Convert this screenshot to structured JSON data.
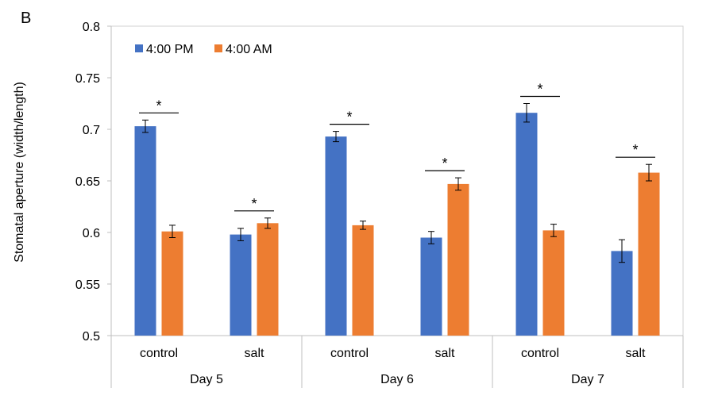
{
  "panel_label": "B",
  "chart_data": {
    "type": "bar",
    "title": "",
    "ylabel": "Stomatal aperture (width/length)",
    "xlabel": "",
    "ylim": [
      0.5,
      0.8
    ],
    "yticks": [
      0.5,
      0.55,
      0.6,
      0.65,
      0.7,
      0.75,
      0.8
    ],
    "ytick_labels": [
      "0.5",
      "0.55",
      "0.6",
      "0.65",
      "0.7",
      "0.75",
      "0.8"
    ],
    "grid": false,
    "legend": "top-left",
    "groups": [
      {
        "label": "Day 5",
        "categories": [
          "control",
          "salt"
        ]
      },
      {
        "label": "Day 6",
        "categories": [
          "control",
          "salt"
        ]
      },
      {
        "label": "Day 7",
        "categories": [
          "control",
          "salt"
        ]
      }
    ],
    "categories": [
      "control",
      "salt",
      "control",
      "salt",
      "control",
      "salt"
    ],
    "series": [
      {
        "name": "4:00 PM",
        "color": "#4472C4",
        "values": [
          0.703,
          0.598,
          0.693,
          0.595,
          0.716,
          0.582
        ],
        "errors": [
          0.006,
          0.006,
          0.005,
          0.006,
          0.009,
          0.011
        ]
      },
      {
        "name": "4:00 AM",
        "color": "#ED7D31",
        "values": [
          0.601,
          0.609,
          0.607,
          0.647,
          0.602,
          0.658
        ],
        "errors": [
          0.006,
          0.005,
          0.004,
          0.006,
          0.006,
          0.008
        ]
      }
    ],
    "significance": [
      "*",
      "*",
      "*",
      "*",
      "*",
      "*"
    ]
  }
}
